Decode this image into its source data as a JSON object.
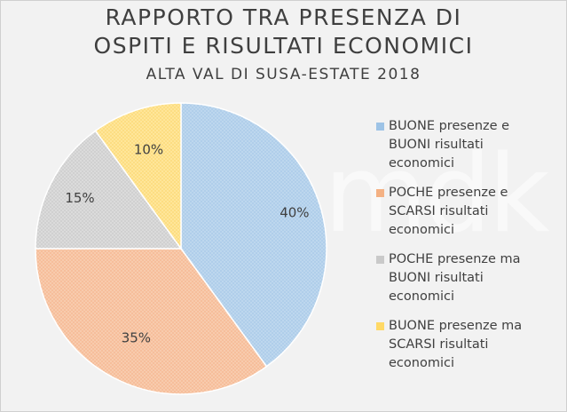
{
  "chart_data": {
    "type": "pie",
    "title": "RAPPORTO TRA PRESENZA DI OSPITI E RISULTATI ECONOMICI",
    "title_lines": [
      "RAPPORTO TRA PRESENZA DI",
      "OSPITI E RISULTATI ECONOMICI"
    ],
    "subtitle": "ALTA VAL DI SUSA-ESTATE 2018",
    "legend_position": "right",
    "slices": [
      {
        "label": "BUONE presenze e BUONI risultati economici",
        "lines": [
          "BUONE presenze e",
          "BUONI risultati",
          "economici"
        ],
        "value": 40,
        "display": "40%",
        "color": "#bdd7ee"
      },
      {
        "label": "POCHE presenze e SCARSI risultati economici",
        "lines": [
          "POCHE presenze e",
          "SCARSI risultati",
          "economici"
        ],
        "value": 35,
        "display": "35%",
        "color": "#f8cbad"
      },
      {
        "label": "POCHE presenze ma BUONI risultati economici",
        "lines": [
          "POCHE presenze ma",
          "BUONI risultati",
          "economici"
        ],
        "value": 15,
        "display": "15%",
        "color": "#dbdbdb"
      },
      {
        "label": "BUONE presenze ma SCARSI risultati economici",
        "lines": [
          "BUONE presenze ma",
          "SCARSI risultati",
          "economici"
        ],
        "value": 10,
        "display": "10%",
        "color": "#ffe699"
      }
    ]
  },
  "watermark": "mdk"
}
